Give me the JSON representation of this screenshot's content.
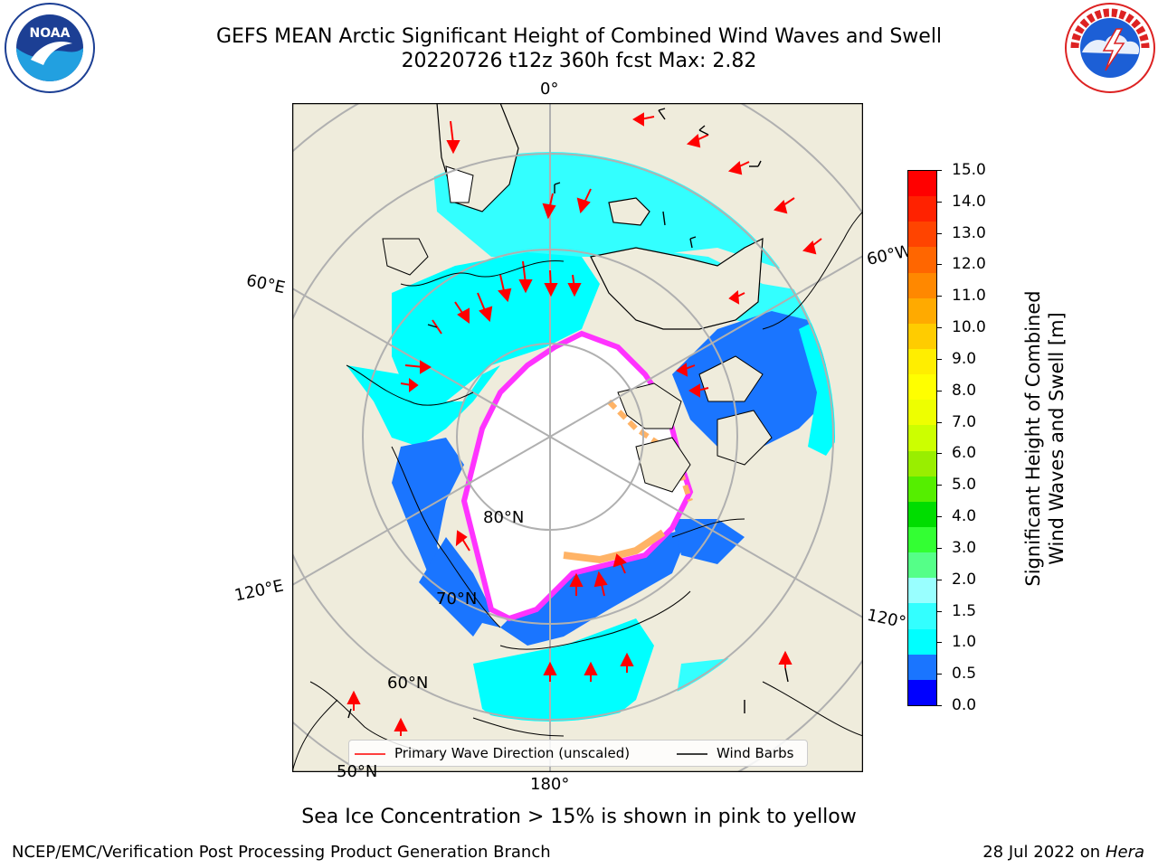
{
  "header": {
    "title_line1": "GEFS MEAN Arctic Significant Height of Combined Wind Waves and Swell",
    "title_line2": "20220726 t12z 360h fcst   Max: 2.82"
  },
  "logos": {
    "left": "NOAA",
    "left_ring_text": "NATIONAL OCEANIC AND ATMOSPHERIC ADMINISTRATION · U.S. DEPARTMENT OF COMMERCE",
    "right_ring_text": "NATIONAL WEATHER SERVICE"
  },
  "map": {
    "lon_labels": {
      "lon_0": "0°",
      "lon_60w": "60°W",
      "lon_120w": "120°W",
      "lon_180": "180°",
      "lon_120e": "120°E",
      "lon_60e": "60°E"
    },
    "lat_labels": {
      "lat_80": "80°N",
      "lat_70": "70°N",
      "lat_60": "60°N",
      "lat_50": "50°N"
    },
    "legend": {
      "wave_direction": "Primary Wave Direction (unscaled)",
      "wind_barbs": "Wind Barbs"
    },
    "colors": {
      "land": "#efecdc",
      "ice": "#ffffff",
      "wave_cyan": "#33ffff",
      "wave_dark_cyan": "#00e5ff",
      "wave_blue": "#1a75ff",
      "wave_deep_blue": "#0000ff",
      "ice_pink": "#ff33ff",
      "ice_orange": "#ffb366",
      "arrow": "#ff0000"
    }
  },
  "colorbar": {
    "label_line1": "Significant Height of Combined",
    "label_line2": "Wind Waves and Swell [m]",
    "ticks": [
      "15.0",
      "14.0",
      "13.0",
      "12.0",
      "11.0",
      "10.0",
      "9.0",
      "8.0",
      "7.0",
      "6.0",
      "5.0",
      "4.0",
      "3.0",
      "2.0",
      "1.5",
      "1.0",
      "0.5",
      "0.0"
    ],
    "colors": [
      "#0000ff",
      "#1a75ff",
      "#00ffff",
      "#33ffff",
      "#99ffff",
      "#55ff88",
      "#33ff33",
      "#00dd00",
      "#55ee00",
      "#99ee00",
      "#ccff00",
      "#eeff00",
      "#ffff00",
      "#ffee00",
      "#ffcc00",
      "#ffaa00",
      "#ff8800",
      "#ff6600",
      "#ff4400",
      "#ff2200",
      "#ff0000"
    ]
  },
  "caption": "Sea Ice Concentration > 15% is shown in pink to yellow",
  "footer": {
    "left": "NCEP/EMC/Verification Post Processing Product Generation Branch",
    "right_date": "28 Jul 2022 on ",
    "right_host": "Hera"
  }
}
